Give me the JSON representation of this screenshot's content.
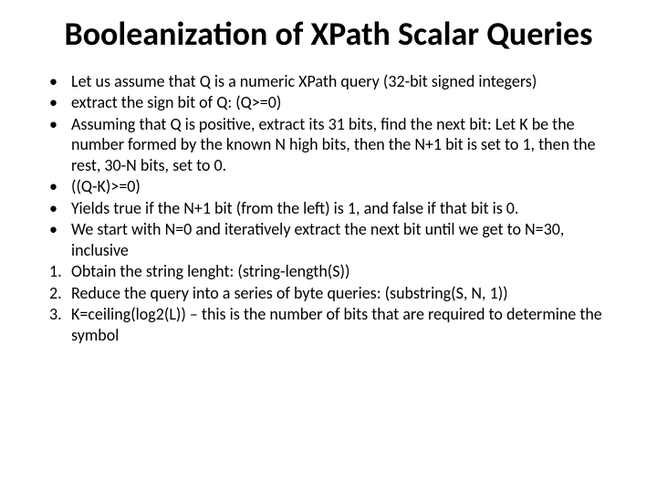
{
  "title": "Booleanization of XPath Scalar Queries",
  "title_fontsize": 36,
  "body_fontsize": 18,
  "text_color": "#000000",
  "background_color": "#ffffff",
  "items": [
    {
      "marker": "•",
      "text": "Let us assume that Q is a numeric XPath query (32-bit signed integers)"
    },
    {
      "marker": "•",
      "text": "extract the sign bit of Q: (Q>=0)"
    },
    {
      "marker": "•",
      "text": "Assuming that Q is positive, extract its 31 bits, find the next bit: Let K be the number formed by the known N high bits, then the N+1 bit is set to 1, then the rest, 30-N bits, set to 0."
    },
    {
      "marker": "•",
      "text": "((Q-K)>=0)"
    },
    {
      "marker": "•",
      "text": "Yields true if the N+1 bit (from the left) is 1, and false if that bit is 0."
    },
    {
      "marker": "•",
      "text": "We start with N=0 and iteratively extract the next bit until we get to N=30, inclusive"
    },
    {
      "marker": "1.",
      "text": "Obtain the string lenght: (string-length(S))"
    },
    {
      "marker": "2.",
      "text": "Reduce the query into a series of byte queries: (substring(S, N, 1))"
    },
    {
      "marker": "3.",
      "text": "K=ceiling(log2(L)) – this is the number of bits that are required to determine the symbol"
    }
  ]
}
